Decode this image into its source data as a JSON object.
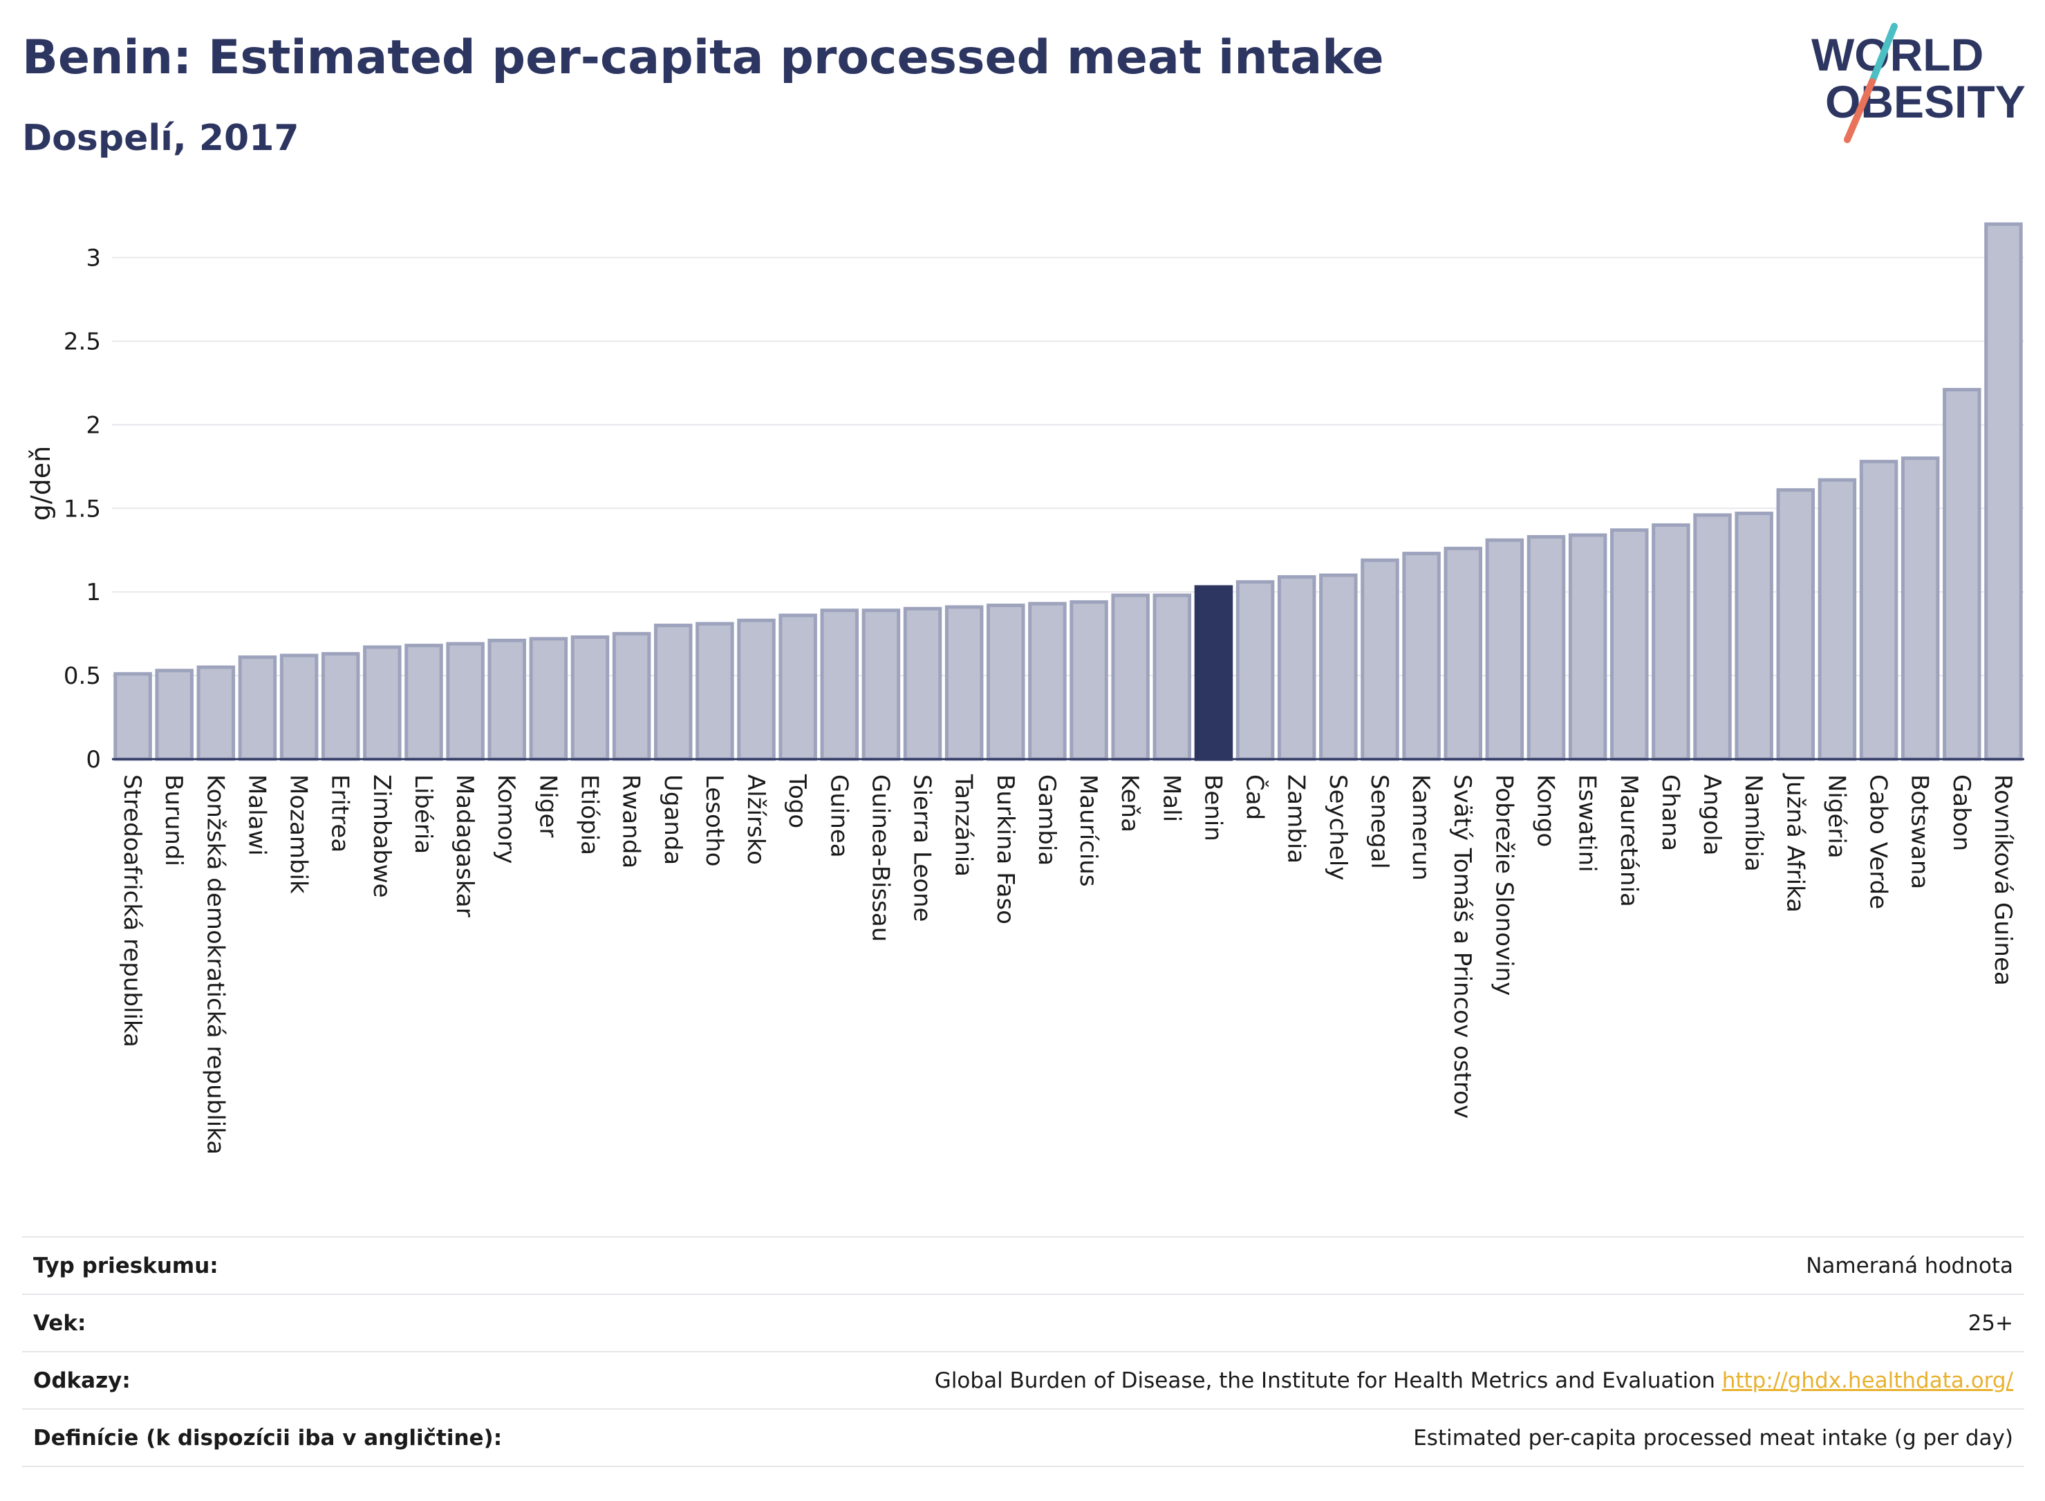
{
  "header": {
    "title": "Benin: Estimated per-capita processed meat intake",
    "subtitle": "Dospelí, 2017"
  },
  "logo": {
    "line1": "WORLD",
    "line2": "OBESITY",
    "accent_colors": [
      "#4bbfc4",
      "#e8735a"
    ]
  },
  "colors": {
    "bar": "#bcc0d0",
    "bar_stroke": "#9ea3bd",
    "highlight": "#2d3561",
    "grid": "#e8e8ec",
    "axis": "#2d3561"
  },
  "chart_data": {
    "type": "bar",
    "ylabel": "g/deň",
    "ylim": [
      0,
      3.3
    ],
    "yticks": [
      0,
      0.5,
      1,
      1.5,
      2,
      2.5,
      3
    ],
    "highlight": "Benin",
    "grid": true,
    "categories": [
      "Stredoafrická republika",
      "Burundi",
      "Konžská demokratická republika",
      "Malawi",
      "Mozambik",
      "Eritrea",
      "Zimbabwe",
      "Libéria",
      "Madagaskar",
      "Komory",
      "Niger",
      "Etiópia",
      "Rwanda",
      "Uganda",
      "Lesotho",
      "Alžírsko",
      "Togo",
      "Guinea",
      "Guinea-Bissau",
      "Sierra Leone",
      "Tanzánia",
      "Burkina Faso",
      "Gambia",
      "Maurícius",
      "Keňa",
      "Mali",
      "Benin",
      "Čad",
      "Zambia",
      "Seychely",
      "Senegal",
      "Kamerun",
      "Svätý Tomáš a Princov ostrov",
      "Pobrežie Slonoviny",
      "Kongo",
      "Eswatini",
      "Mauretánia",
      "Ghana",
      "Angola",
      "Namíbia",
      "Južná Afrika",
      "Nigéria",
      "Cabo Verde",
      "Botswana",
      "Gabon",
      "Rovníková Guinea"
    ],
    "values": [
      0.51,
      0.53,
      0.55,
      0.61,
      0.62,
      0.63,
      0.67,
      0.68,
      0.69,
      0.71,
      0.72,
      0.73,
      0.75,
      0.8,
      0.81,
      0.83,
      0.86,
      0.89,
      0.89,
      0.9,
      0.91,
      0.92,
      0.93,
      0.94,
      0.98,
      0.98,
      1.03,
      1.06,
      1.09,
      1.1,
      1.19,
      1.23,
      1.26,
      1.31,
      1.33,
      1.34,
      1.37,
      1.4,
      1.46,
      1.47,
      1.61,
      1.67,
      1.78,
      1.8,
      2.21,
      3.2
    ]
  },
  "info": [
    {
      "label": "Typ prieskumu:",
      "value": "Nameraná hodnota"
    },
    {
      "label": "Vek:",
      "value": "25+"
    },
    {
      "label": "Odkazy:",
      "value": "Global Burden of Disease, the Institute for Health Metrics and Evaluation",
      "link": "http://ghdx.healthdata.org/"
    },
    {
      "label": "Definície (k dispozícii iba v angličtine):",
      "value": "Estimated per-capita processed meat intake (g per day)"
    }
  ]
}
